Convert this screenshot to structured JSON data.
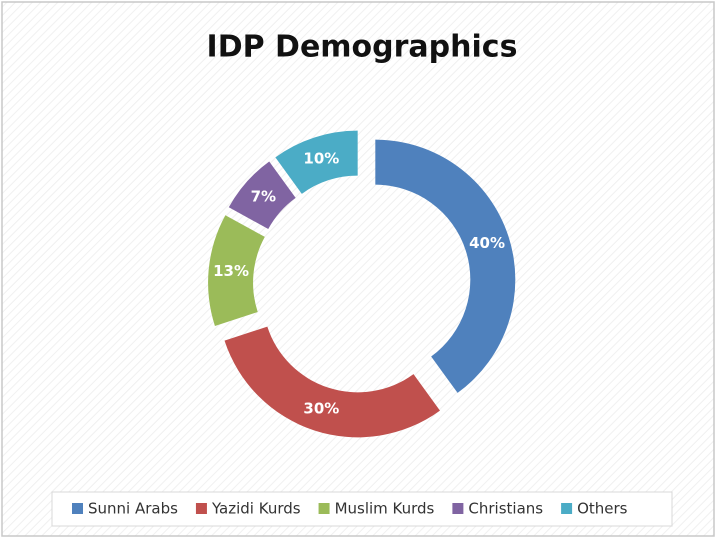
{
  "chart_data": {
    "type": "donut",
    "title": "IDP Demographics",
    "categories": [
      "Sunni Arabs",
      "Yazidi Kurds",
      "Muslim Kurds",
      "Christians",
      "Others"
    ],
    "values": [
      40,
      30,
      13,
      7,
      10
    ],
    "value_labels": [
      "40%",
      "30%",
      "13%",
      "7%",
      "10%"
    ],
    "colors": [
      "#4f81bd",
      "#c0504d",
      "#9bbb59",
      "#8064a2",
      "#4bacc6"
    ],
    "legend": "bottom"
  }
}
